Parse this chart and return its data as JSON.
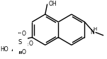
{
  "bg_color": "#ffffff",
  "line_color": "#000000",
  "lw": 1.0,
  "figsize": [
    1.51,
    0.83
  ],
  "dpi": 100,
  "xlim": [
    0,
    151
  ],
  "ylim": [
    0,
    83
  ]
}
